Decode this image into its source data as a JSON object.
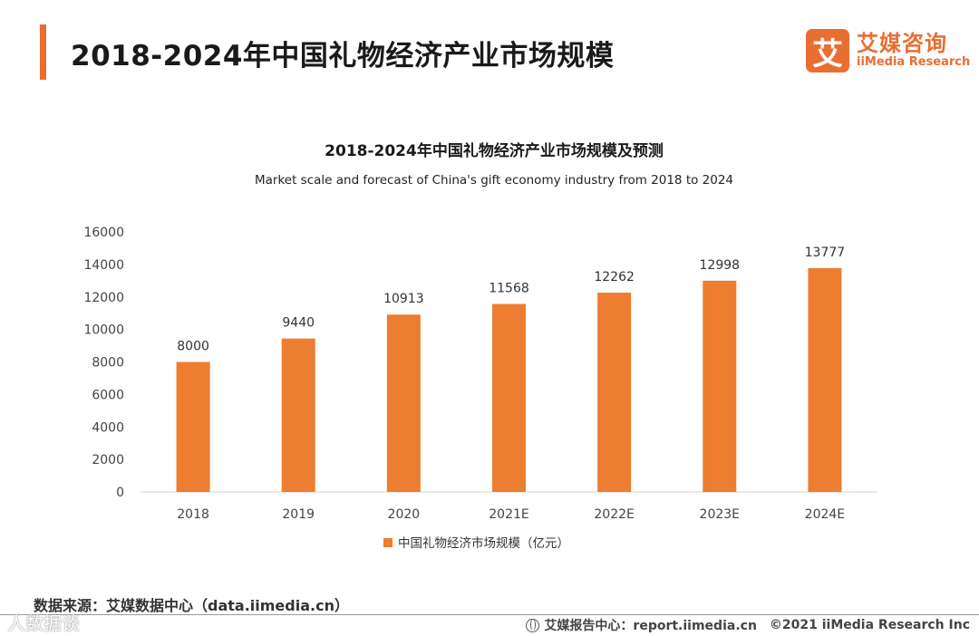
{
  "header": {
    "title": "2018-2024年中国礼物经济产业市场规模",
    "logo_mark": "艾",
    "logo_cn": "艾媒咨询",
    "logo_en": "iiMedia Research"
  },
  "chart_data": {
    "type": "bar",
    "title": "2018-2024年中国礼物经济产业市场规模及预测",
    "subtitle": "Market scale and forecast of China's gift economy industry from 2018 to 2024",
    "categories": [
      "2018",
      "2019",
      "2020",
      "2021E",
      "2022E",
      "2023E",
      "2024E"
    ],
    "series": [
      {
        "name": "中国礼物经济市场规模（亿元）",
        "values": [
          8000,
          9440,
          10913,
          11568,
          12262,
          12998,
          13777
        ],
        "color": "#ed7d31"
      }
    ],
    "ylim": [
      0,
      16000
    ],
    "yticks": [
      0,
      2000,
      4000,
      6000,
      8000,
      10000,
      12000,
      14000,
      16000
    ],
    "xlabel": "",
    "ylabel": "",
    "legend_position": "bottom",
    "grid": false
  },
  "footer": {
    "source": "数据来源：艾媒数据中心（data.iimedia.cn）",
    "report": "艾媒报告中心：report.iimedia.cn",
    "copyright": "©2021 iiMedia Research Inc",
    "watermark": "人数据谈"
  }
}
